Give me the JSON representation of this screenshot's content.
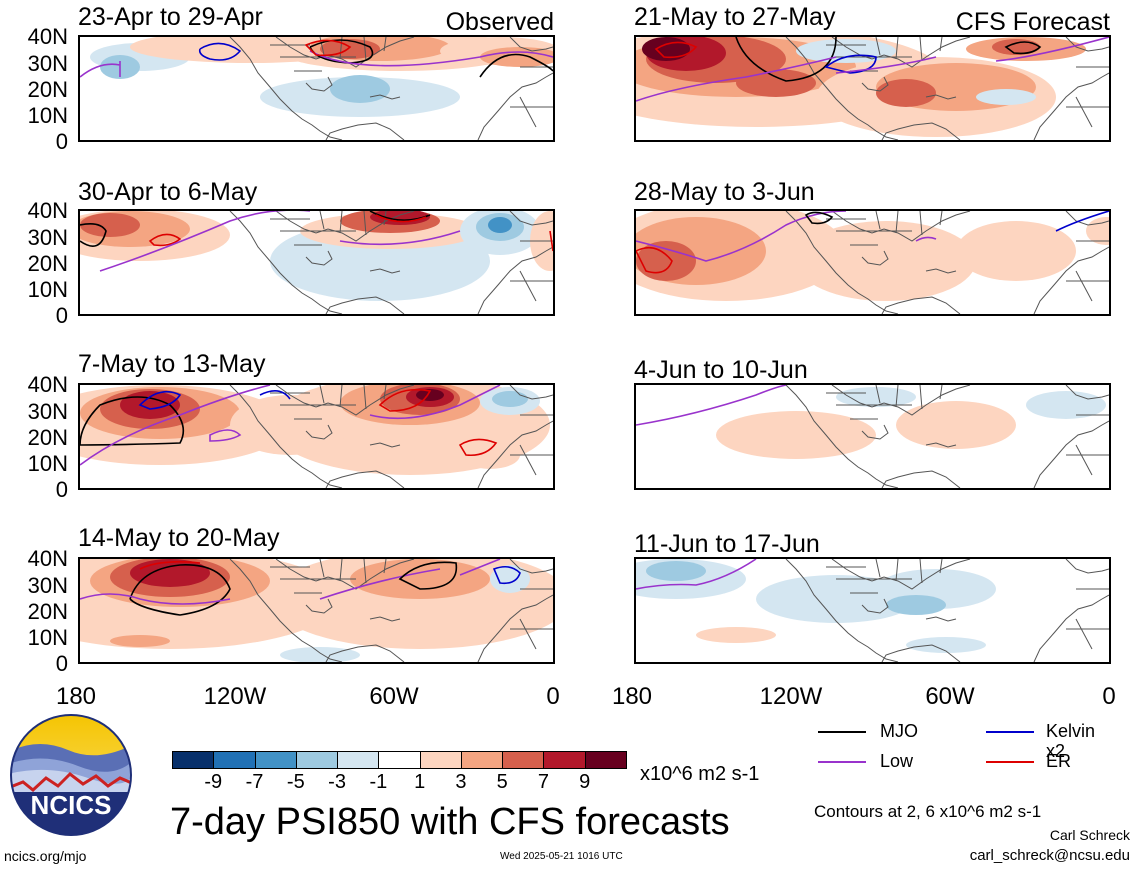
{
  "headers": {
    "left": "Observed",
    "right": "CFS Forecast"
  },
  "panels": [
    {
      "id": "obs-1",
      "label": "23-Apr to 29-Apr"
    },
    {
      "id": "obs-2",
      "label": "30-Apr to 6-May"
    },
    {
      "id": "obs-3",
      "label": "7-May to 13-May"
    },
    {
      "id": "obs-4",
      "label": "14-May to 20-May"
    },
    {
      "id": "fc-1",
      "label": "21-May to 27-May"
    },
    {
      "id": "fc-2",
      "label": "28-May to 3-Jun"
    },
    {
      "id": "fc-3",
      "label": "4-Jun to 10-Jun"
    },
    {
      "id": "fc-4",
      "label": "11-Jun to 17-Jun"
    }
  ],
  "y_ticks": [
    "40N",
    "30N",
    "20N",
    "10N",
    "0"
  ],
  "x_ticks": [
    "180",
    "120W",
    "60W",
    "0"
  ],
  "colorbar": {
    "colors": [
      "#08306b",
      "#2171b5",
      "#4292c6",
      "#9ecae1",
      "#d4e6f1",
      "#ffffff",
      "#fdd5c0",
      "#f4a582",
      "#d6604d",
      "#b2182b",
      "#67001f"
    ],
    "ticks": [
      "-9",
      "-7",
      "-5",
      "-3",
      "-1",
      "1",
      "3",
      "5",
      "7",
      "9"
    ],
    "unit": "x10^6 m2 s-1"
  },
  "legend": {
    "items": [
      {
        "label": "MJO",
        "color": "#000000"
      },
      {
        "label": "Kelvin x2",
        "color": "#0000cc"
      },
      {
        "label": "Low",
        "color": "#9933cc"
      },
      {
        "label": "ER",
        "color": "#dd0000"
      }
    ],
    "contours_note": "Contours at 2, 6 x10^6 m2 s-1"
  },
  "title": "7-day PSI850 with CFS forecasts",
  "logo_text": "NCICS",
  "footer": {
    "url": "ncics.org/mjo",
    "timestamp": "Wed 2025-05-21 1016 UTC",
    "author": "Carl Schreck",
    "email": "carl_schreck@ncsu.edu"
  }
}
